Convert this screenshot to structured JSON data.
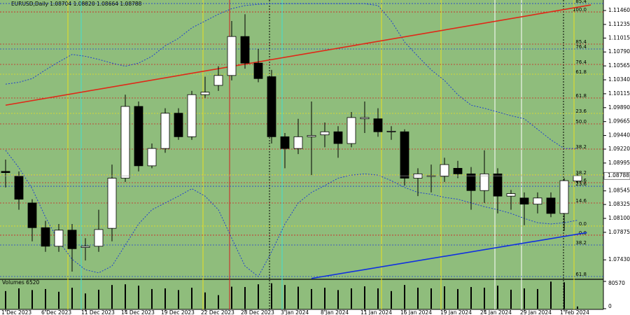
{
  "chart_data": {
    "type": "candlestick",
    "title": "EURUSD,Daily  1.08704 1.08820 1.08664 1.08788",
    "categories": [
      "1 Dec 2023",
      null,
      null,
      "6 Dec 2023",
      null,
      null,
      "11 Dec 2023",
      null,
      null,
      "14 Dec 2023",
      null,
      null,
      "19 Dec 2023",
      null,
      null,
      "22 Dec 2023",
      null,
      null,
      "28 Dec 2023",
      null,
      null,
      "3 Jan 2024",
      null,
      null,
      "8 Jan 2024",
      null,
      null,
      "11 Jan 2024",
      null,
      null,
      "16 Jan 2024",
      null,
      null,
      "19 Jan 2024",
      null,
      null,
      "24 Jan 2024",
      null,
      null,
      "29 Jan 2024",
      null,
      null,
      "1 Feb 2024",
      null
    ],
    "open": [
      1.0886,
      1.0878,
      1.0835,
      1.0795,
      1.0765,
      1.0791,
      1.0763,
      1.0765,
      1.0794,
      1.0875,
      1.0991,
      1.0895,
      1.0923,
      1.098,
      1.0942,
      1.101,
      1.1025,
      1.1041,
      1.1104,
      1.1061,
      1.1039,
      1.0942,
      1.0923,
      1.0942,
      1.0945,
      1.095,
      1.0931,
      1.0971,
      1.0971,
      1.095,
      1.095,
      1.0875,
      1.0878,
      1.0878,
      1.0891,
      1.0882,
      1.0855,
      1.0882,
      1.0846,
      1.0843,
      1.0833,
      1.0843,
      1.0818,
      1.08704
    ],
    "high": [
      1.0905,
      1.0886,
      1.0841,
      1.0806,
      1.0801,
      1.0801,
      1.0778,
      1.0824,
      1.0897,
      1.101,
      1.0999,
      1.0931,
      1.0988,
      1.0988,
      1.1016,
      1.1039,
      1.1056,
      1.1129,
      1.114,
      1.1084,
      1.105,
      1.0948,
      1.0971,
      1.0999,
      1.0965,
      1.0959,
      1.0982,
      1.0999,
      1.0988,
      1.0959,
      1.0954,
      1.0891,
      1.0897,
      1.0908,
      1.0903,
      1.0893,
      1.092,
      1.0891,
      1.0856,
      1.0852,
      1.0852,
      1.0852,
      1.0875,
      1.0882
    ],
    "low": [
      1.086,
      1.0824,
      1.0773,
      1.0756,
      1.0756,
      1.0724,
      1.0742,
      1.0756,
      1.0773,
      1.0869,
      1.0886,
      1.0891,
      1.0916,
      1.0937,
      1.0937,
      1.1005,
      1.1016,
      1.1033,
      1.1052,
      1.103,
      1.0931,
      1.0891,
      1.0914,
      1.088,
      1.0925,
      1.0908,
      1.0925,
      1.0948,
      1.0942,
      1.0937,
      1.0863,
      1.0846,
      1.0852,
      1.0869,
      1.0875,
      1.0824,
      1.0835,
      1.0818,
      1.0824,
      1.0799,
      1.0818,
      1.0812,
      1.079,
      1.08664
    ],
    "close": [
      1.0884,
      1.0841,
      1.0795,
      1.0765,
      1.0791,
      1.0761,
      1.0765,
      1.0792,
      1.0875,
      1.0991,
      1.0895,
      1.0923,
      1.098,
      1.0942,
      1.101,
      1.1014,
      1.1041,
      1.1104,
      1.1061,
      1.1036,
      1.0942,
      1.0923,
      1.0942,
      1.0944,
      1.095,
      1.0931,
      1.0973,
      1.0973,
      1.095,
      1.0951,
      1.0875,
      1.0882,
      1.0879,
      1.0897,
      1.0882,
      1.0855,
      1.0882,
      1.0846,
      1.085,
      1.0833,
      1.0843,
      1.0818,
      1.0871,
      1.08788
    ],
    "up_color": "#ffffff",
    "down_color": "#000000",
    "background": "#8fbd7c",
    "ylim": [
      1.07127,
      1.1163
    ],
    "yticks": [
      {
        "value": 1.1146,
        "label": "1.11460"
      },
      {
        "value": 1.11235,
        "label": "1.11235"
      },
      {
        "value": 1.11015,
        "label": "1.11015"
      },
      {
        "value": 1.1079,
        "label": "1.10790"
      },
      {
        "value": 1.10565,
        "label": "1.10565"
      },
      {
        "value": 1.1034,
        "label": "1.10340"
      },
      {
        "value": 1.10115,
        "label": "1.10115"
      },
      {
        "value": 1.0989,
        "label": "1.09890"
      },
      {
        "value": 1.09665,
        "label": "1.09665"
      },
      {
        "value": 1.0944,
        "label": "1.09440"
      },
      {
        "value": 1.0922,
        "label": "1.09220"
      },
      {
        "value": 1.08995,
        "label": "1.08995"
      },
      {
        "value": 1.08545,
        "label": "1.08545"
      },
      {
        "value": 1.08325,
        "label": "1.08325"
      },
      {
        "value": 1.081,
        "label": "1.08100"
      },
      {
        "value": 1.07875,
        "label": "1.07875"
      },
      {
        "value": 1.0743,
        "label": "1.07430"
      }
    ],
    "bands": [
      {
        "color": "#2040d0",
        "values": [
          1.1027,
          1.103,
          1.1036,
          1.105,
          1.1063,
          1.1075,
          1.1072,
          1.1067,
          1.1061,
          1.1056,
          1.1061,
          1.1072,
          1.1089,
          1.1101,
          1.1118,
          1.1129,
          1.114,
          1.1149,
          1.1154,
          1.1156,
          1.1157,
          1.1157,
          1.1157,
          1.1157,
          1.1157,
          1.1157,
          1.1157,
          1.1157,
          1.1154,
          1.1129,
          1.1095,
          1.1072,
          1.105,
          1.1033,
          1.101,
          1.0993,
          1.0988,
          1.0982,
          1.0976,
          1.0971,
          1.0954,
          1.0937,
          1.0923,
          1.0923
        ]
      },
      {
        "color": "#2040d0",
        "values": [
          1.092,
          1.0892,
          1.0858,
          1.0812,
          1.0773,
          1.0744,
          1.0727,
          1.0722,
          1.0733,
          1.0767,
          1.0801,
          1.0824,
          1.0835,
          1.0846,
          1.0858,
          1.0846,
          1.0824,
          1.0778,
          1.0733,
          1.0716,
          1.0756,
          1.0801,
          1.0835,
          1.0852,
          1.0863,
          1.0875,
          1.088,
          1.0882,
          1.088,
          1.0871,
          1.086,
          1.0852,
          1.0849,
          1.0844,
          1.0841,
          1.0835,
          1.0829,
          1.0824,
          1.0818,
          1.081,
          1.0803,
          1.0801,
          1.0803,
          1.0807
        ]
      }
    ],
    "levels": [
      {
        "value": 1.11573,
        "label": "85.4",
        "color": "#2040d0"
      },
      {
        "value": 1.11437,
        "label": "100.0",
        "color": "#d02020"
      },
      {
        "value": 1.10917,
        "label": "85.4",
        "color": "#d02020"
      },
      {
        "value": 1.10838,
        "label": "76.4",
        "color": "#2040d0"
      },
      {
        "value": 1.10589,
        "label": "76.4",
        "color": "#d02020"
      },
      {
        "value": 1.10431,
        "label": "61.8",
        "color": "#e8e020"
      },
      {
        "value": 1.10046,
        "label": "61.8",
        "color": "#d02020"
      },
      {
        "value": 1.09797,
        "label": "23.6",
        "color": "#e8e020"
      },
      {
        "value": 1.09627,
        "label": "50.0",
        "color": "#d02020"
      },
      {
        "value": 1.0922,
        "label": "38.2",
        "color": "#d02020"
      },
      {
        "value": 1.08802,
        "label": "38.2",
        "color": "#e8e020"
      },
      {
        "value": 1.08677,
        "label": "23.6",
        "color": "#d02020"
      },
      {
        "value": 1.0862,
        "label": "23.6",
        "color": "#2040d0"
      },
      {
        "value": 1.08349,
        "label": "14.6",
        "color": "#d02020"
      },
      {
        "value": 1.07976,
        "label": "0.0",
        "color": "#e8e020"
      },
      {
        "value": 1.07829,
        "label": "0.0",
        "color": "#d02020"
      },
      {
        "value": 1.0767,
        "label": "38.2",
        "color": "#2040d0"
      },
      {
        "value": 1.07161,
        "label": "61.8",
        "color": "#2040d0"
      }
    ],
    "trendlines": [
      {
        "color": "#e02818",
        "x": [
          0,
          44
        ],
        "values": [
          1.0993,
          1.1155
        ]
      },
      {
        "color": "#1030e0",
        "x": [
          23,
          43.7
        ],
        "values": [
          1.0713,
          1.0787
        ]
      }
    ],
    "volume": {
      "label": "Volumes 6520",
      "color": "#000000",
      "values": [
        52000,
        60000,
        55000,
        58000,
        50000,
        62000,
        45000,
        56000,
        70000,
        72000,
        68000,
        58000,
        60000,
        55000,
        62000,
        48000,
        40000,
        65000,
        64000,
        72000,
        75000,
        70000,
        65000,
        58000,
        62000,
        55000,
        60000,
        66000,
        60000,
        52000,
        70000,
        62000,
        60000,
        66000,
        58000,
        64000,
        62000,
        68000,
        56000,
        60000,
        58000,
        80000,
        78000,
        6520
      ],
      "ylim": [
        0,
        80570
      ],
      "yticks": [
        80570,
        0
      ]
    }
  }
}
